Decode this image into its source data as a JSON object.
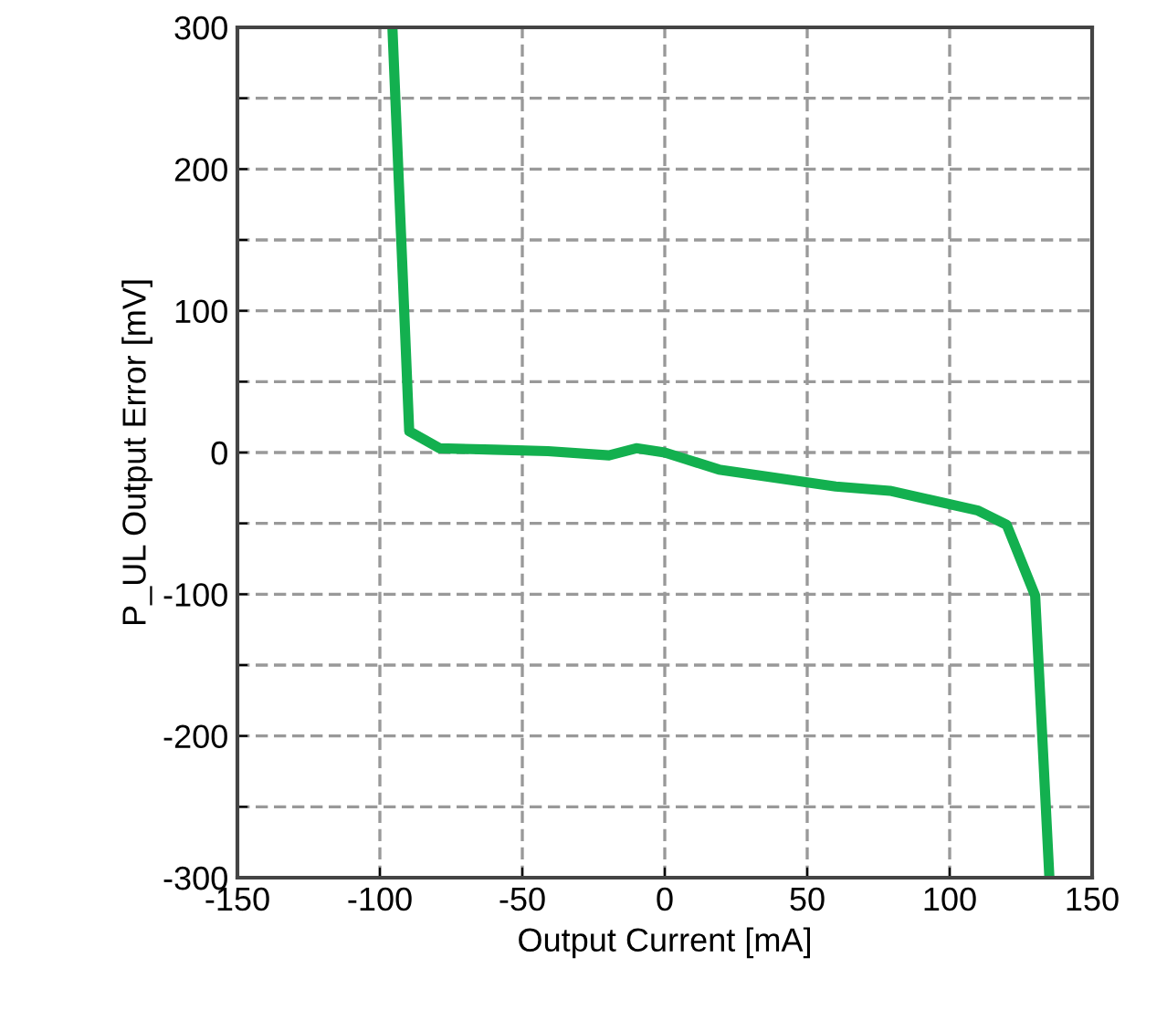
{
  "chart_data": {
    "type": "line",
    "xlabel": "Output Current [mA]",
    "ylabel": "P_UL Output Error [mV]",
    "x": [
      -95.6,
      -89.7,
      -79,
      -60,
      -41,
      -19.6,
      -10,
      0,
      19,
      60,
      79,
      110,
      120,
      130,
      135
    ],
    "series": [
      {
        "color": "#13b04f",
        "values": [
          300,
          15,
          3,
          2,
          1,
          -2,
          3,
          0,
          -12,
          -24,
          -27,
          -41,
          -51,
          -101,
          -300
        ]
      }
    ],
    "xlim": [
      -150,
      150
    ],
    "xticks": [
      -150,
      -100,
      -50,
      0,
      50,
      100,
      150
    ],
    "ylim": [
      -300,
      300
    ],
    "yticks": [
      -300,
      {
        "value": -250,
        "label": null
      },
      -200,
      {
        "value": -150,
        "label": null
      },
      -100,
      {
        "value": -50,
        "label": null
      },
      0,
      {
        "value": 50,
        "label": null
      },
      100,
      {
        "value": 150,
        "label": null
      },
      200,
      {
        "value": 250,
        "label": null
      },
      300
    ],
    "grid": true,
    "marker": "none",
    "line_style": "solid"
  }
}
